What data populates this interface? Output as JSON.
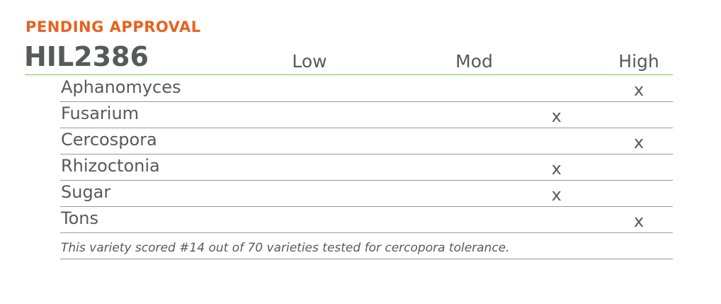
{
  "status": "PENDING APPROVAL",
  "title": "HIL2386",
  "table": {
    "columns": [
      "Low",
      null,
      "Mod",
      null,
      "High"
    ],
    "rows": [
      {
        "label": "Aphanomyces",
        "cells": [
          null,
          null,
          null,
          null,
          "x"
        ]
      },
      {
        "label": "Fusarium",
        "cells": [
          null,
          null,
          null,
          "x",
          null
        ]
      },
      {
        "label": "Cercospora",
        "cells": [
          null,
          null,
          null,
          null,
          "x"
        ]
      },
      {
        "label": "Rhizoctonia",
        "cells": [
          null,
          null,
          null,
          "x",
          null
        ]
      },
      {
        "label": "Sugar",
        "cells": [
          null,
          null,
          null,
          "x",
          null
        ]
      },
      {
        "label": "Tons",
        "cells": [
          null,
          null,
          null,
          null,
          "x"
        ]
      }
    ]
  },
  "footnote": "This variety scored #14 out of 70 varieties tested for cercopora tolerance."
}
